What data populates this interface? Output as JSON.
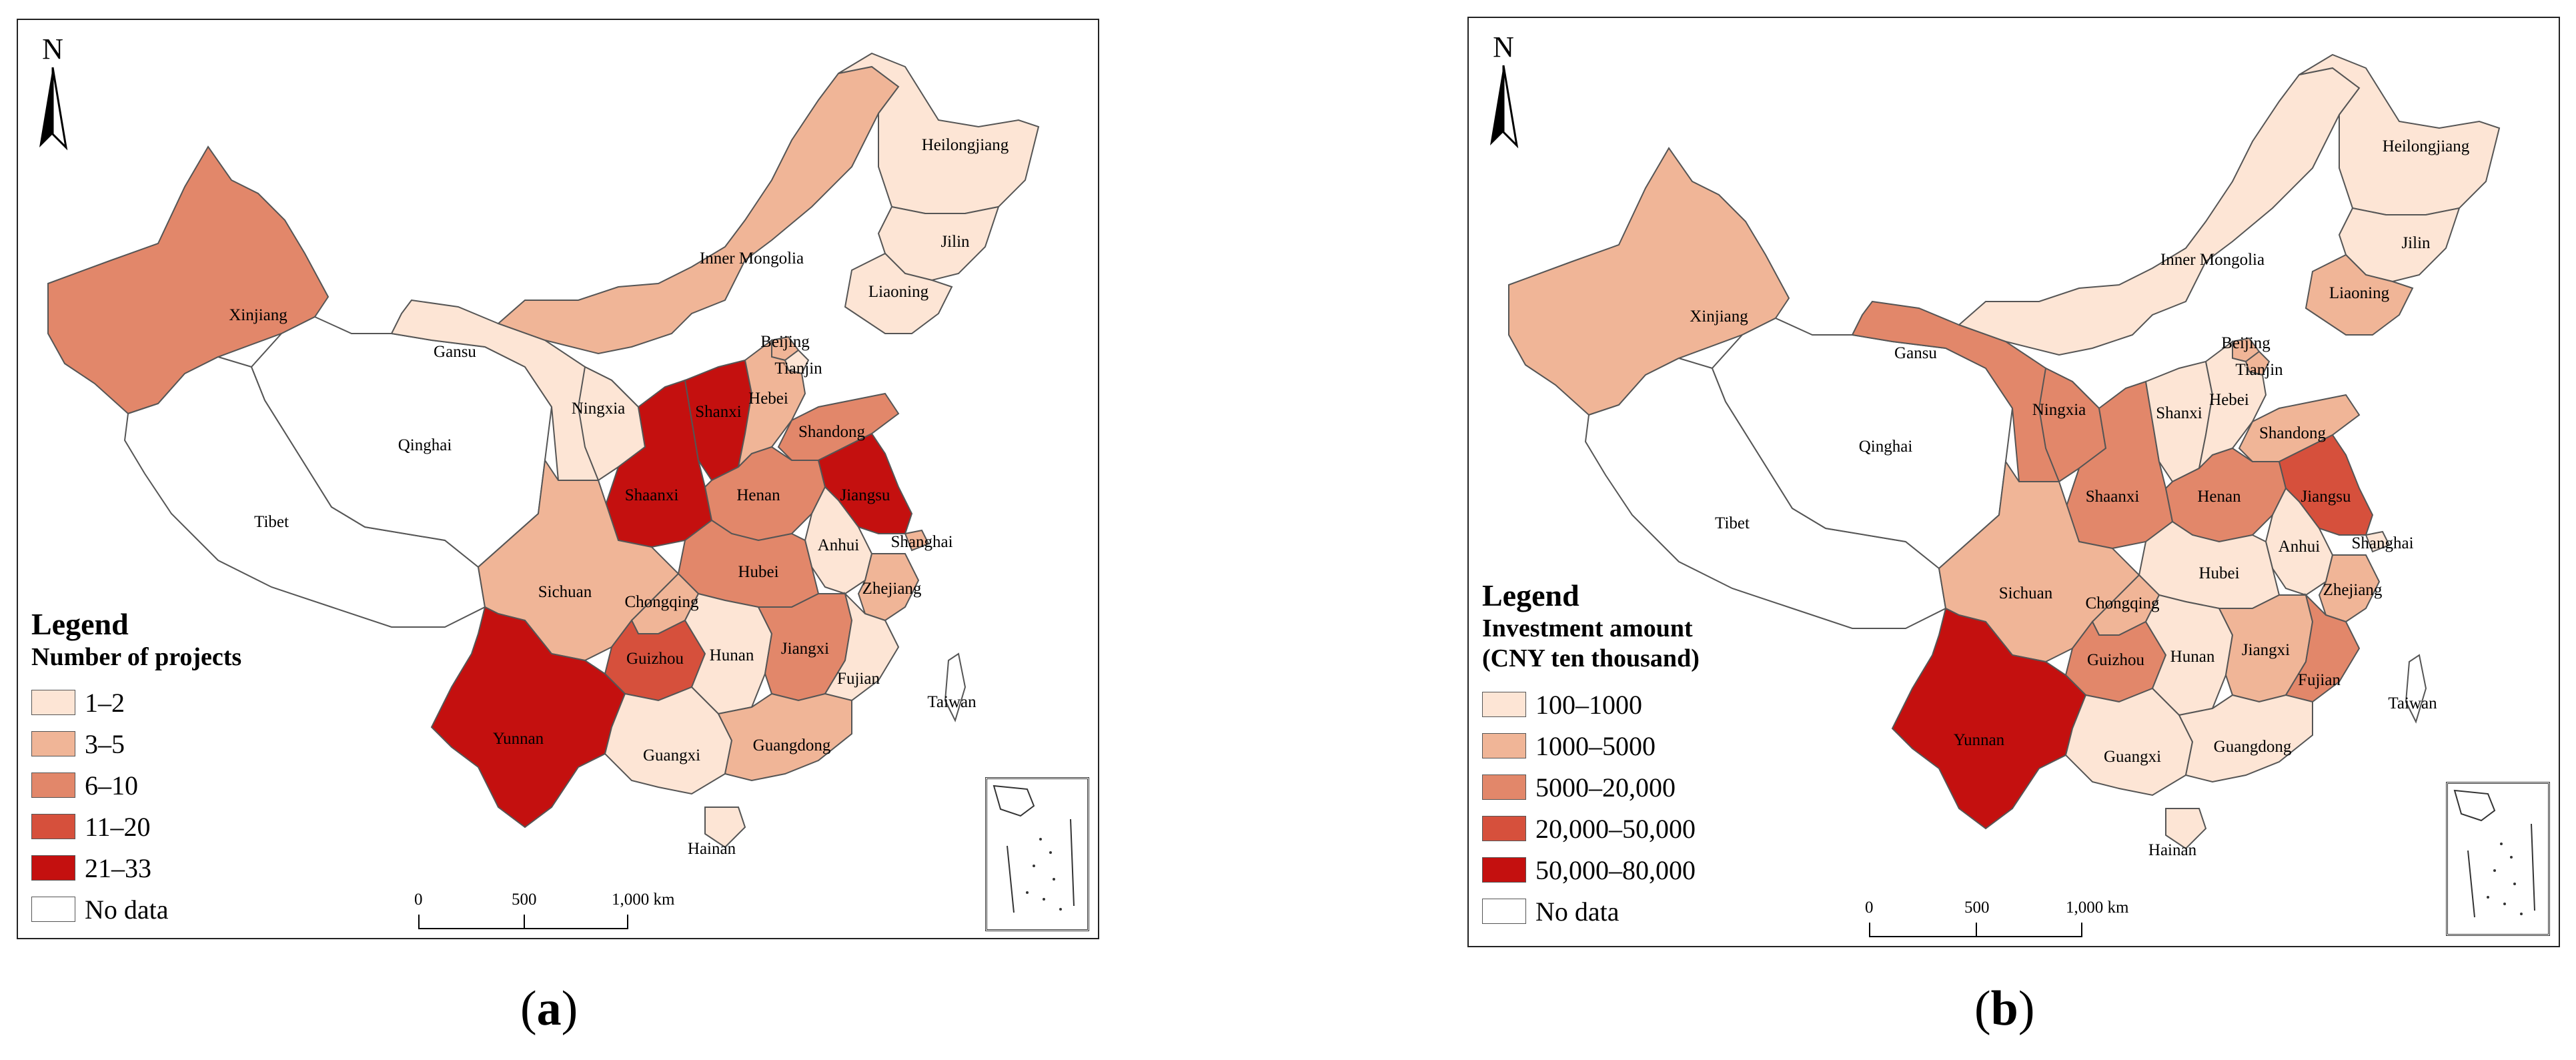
{
  "panels": [
    {
      "id": "a",
      "caption_letter": "a",
      "north_label": "N",
      "legend": {
        "title": "Legend",
        "subtitle_lines": [
          "Number of projects"
        ],
        "classes": [
          {
            "label": "1–2",
            "color": "#fde5d5"
          },
          {
            "label": "3–5",
            "color": "#f0b597"
          },
          {
            "label": "6–10",
            "color": "#e2876a"
          },
          {
            "label": "11–20",
            "color": "#d6503c"
          },
          {
            "label": "21–33",
            "color": "#c4100f"
          },
          {
            "label": "No data",
            "color": "#ffffff"
          }
        ]
      },
      "scale": {
        "ticks": [
          "0",
          "500",
          "1,000 km"
        ]
      },
      "province_classes": {
        "Heilongjiang": 0,
        "Jilin": 0,
        "Liaoning": 0,
        "Inner Mongolia": 1,
        "Xinjiang": 2,
        "Gansu": 0,
        "Qinghai": -1,
        "Tibet": -1,
        "Ningxia": 0,
        "Shaanxi": 4,
        "Shanxi": 4,
        "Beijing": 1,
        "Tianjin": 0,
        "Hebei": 1,
        "Shandong": 2,
        "Henan": 2,
        "Jiangsu": 4,
        "Shanghai": 1,
        "Anhui": 0,
        "Hubei": 2,
        "Sichuan": 1,
        "Chongqing": 1,
        "Zhejiang": 1,
        "Guizhou": 3,
        "Hunan": 0,
        "Jiangxi": 2,
        "Fujian": 0,
        "Yunnan": 4,
        "Guangxi": 0,
        "Guangdong": 1,
        "Hainan": 0,
        "Taiwan": -1
      }
    },
    {
      "id": "b",
      "caption_letter": "b",
      "north_label": "N",
      "legend": {
        "title": "Legend",
        "subtitle_lines": [
          "Investment amount",
          "(CNY ten thousand)"
        ],
        "classes": [
          {
            "label": "100–1000",
            "color": "#fde5d5"
          },
          {
            "label": "1000–5000",
            "color": "#f0b597"
          },
          {
            "label": "5000–20,000",
            "color": "#e2876a"
          },
          {
            "label": "20,000–50,000",
            "color": "#d6503c"
          },
          {
            "label": "50,000–80,000",
            "color": "#c4100f"
          },
          {
            "label": "No data",
            "color": "#ffffff"
          }
        ]
      },
      "scale": {
        "ticks": [
          "0",
          "500",
          "1,000 km"
        ]
      },
      "province_classes": {
        "Heilongjiang": 0,
        "Jilin": 0,
        "Liaoning": 1,
        "Inner Mongolia": 0,
        "Xinjiang": 1,
        "Gansu": 2,
        "Qinghai": -1,
        "Tibet": -1,
        "Ningxia": 2,
        "Shaanxi": 2,
        "Shanxi": 0,
        "Beijing": 1,
        "Tianjin": 1,
        "Hebei": 0,
        "Shandong": 1,
        "Henan": 2,
        "Jiangsu": 3,
        "Shanghai": 0,
        "Anhui": 0,
        "Hubei": 0,
        "Sichuan": 1,
        "Chongqing": 1,
        "Zhejiang": 1,
        "Guizhou": 2,
        "Hunan": 0,
        "Jiangxi": 1,
        "Fujian": 2,
        "Yunnan": 4,
        "Guangxi": 0,
        "Guangdong": 0,
        "Hainan": 0,
        "Taiwan": -1
      }
    }
  ]
}
